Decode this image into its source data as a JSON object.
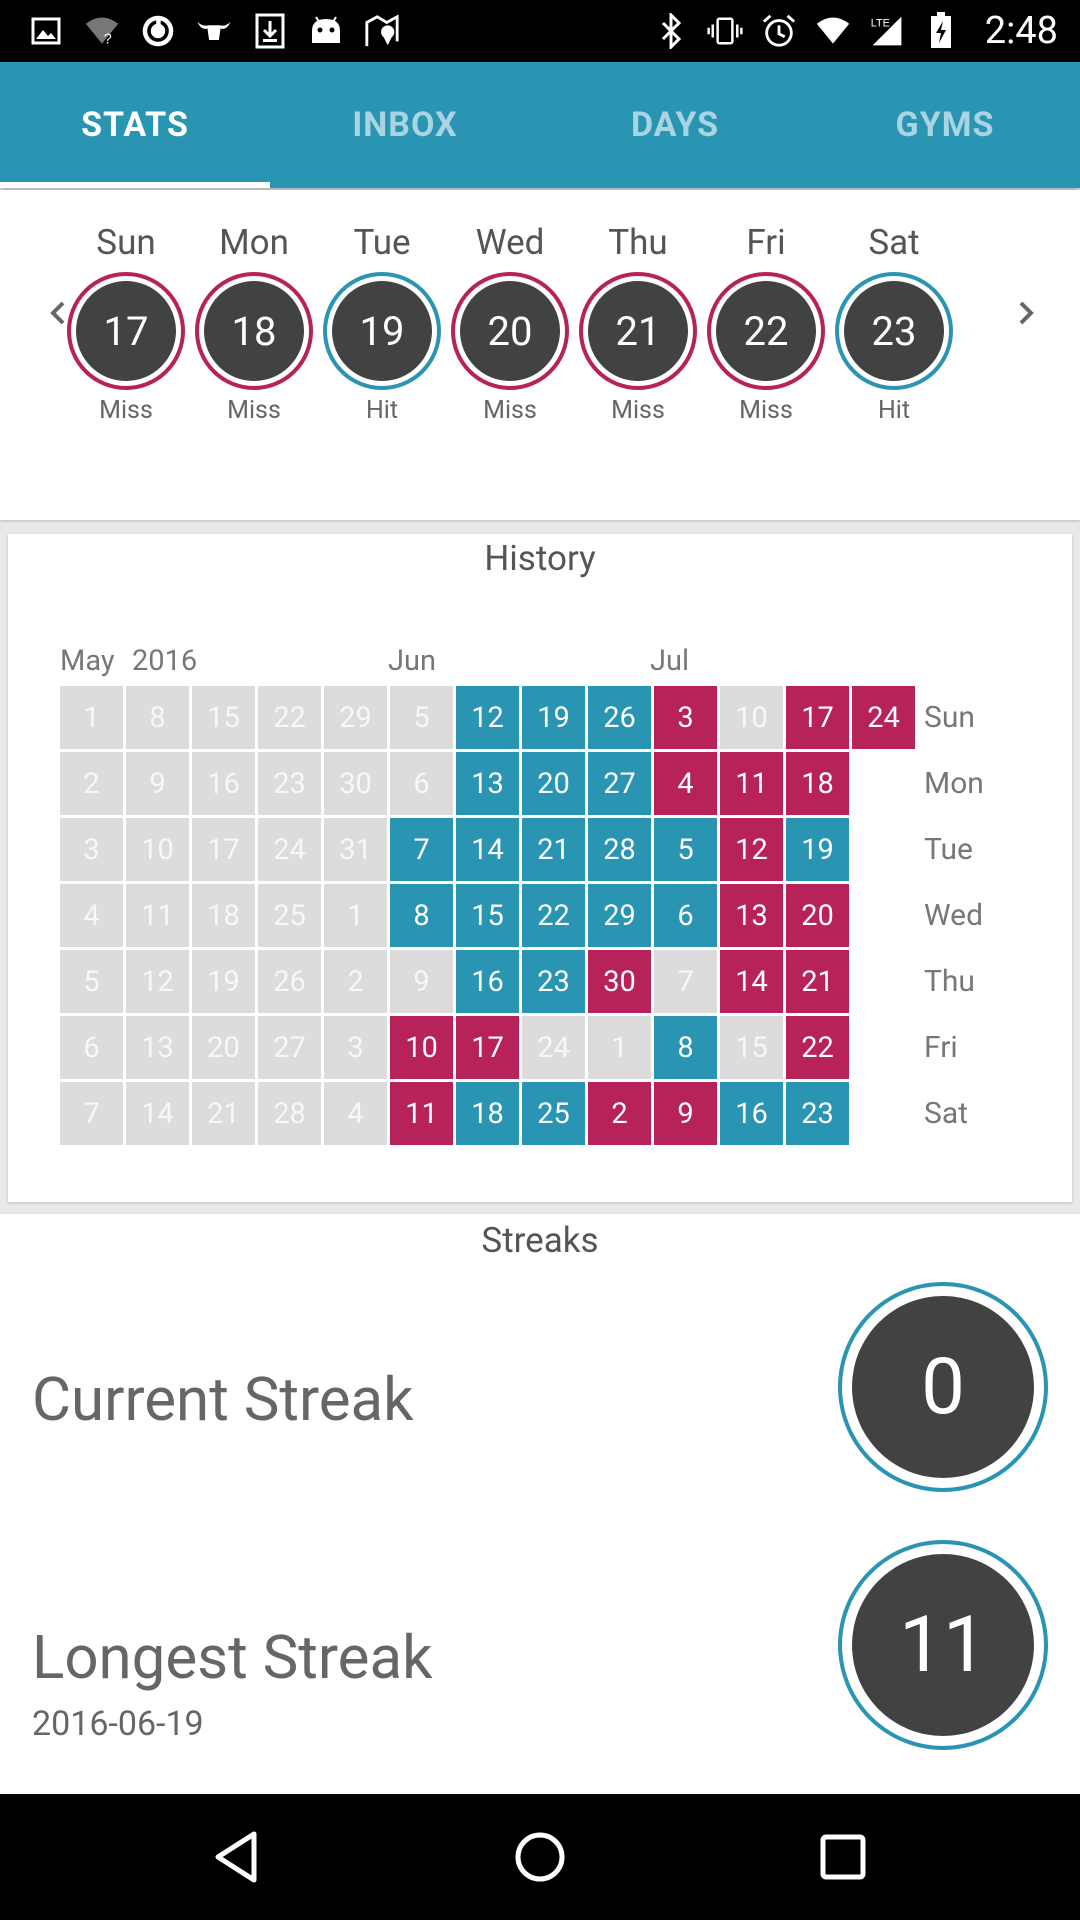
{
  "status_bar": {
    "time": "2:48",
    "icons_left": [
      "image-icon",
      "wifi-question-icon",
      "sync-icon",
      "bull-icon",
      "download-icon",
      "android-icon",
      "map-icon"
    ],
    "icons_right": [
      "bluetooth-icon",
      "vibrate-icon",
      "alarm-icon",
      "wifi-icon",
      "lte-signal-icon",
      "battery-icon"
    ]
  },
  "tabs": [
    {
      "label": "STATS",
      "active": true
    },
    {
      "label": "INBOX",
      "active": false
    },
    {
      "label": "DAYS",
      "active": false
    },
    {
      "label": "GYMS",
      "active": false
    }
  ],
  "week": {
    "days": [
      {
        "name": "Sun",
        "date": "17",
        "status": "Miss"
      },
      {
        "name": "Mon",
        "date": "18",
        "status": "Miss"
      },
      {
        "name": "Tue",
        "date": "19",
        "status": "Hit"
      },
      {
        "name": "Wed",
        "date": "20",
        "status": "Miss"
      },
      {
        "name": "Thu",
        "date": "21",
        "status": "Miss"
      },
      {
        "name": "Fri",
        "date": "22",
        "status": "Miss"
      },
      {
        "name": "Sat",
        "date": "23",
        "status": "Hit"
      }
    ]
  },
  "history": {
    "title": "History",
    "months": [
      "May",
      "2016",
      "Jun",
      "Jul"
    ],
    "weekday_labels": [
      "Sun",
      "Mon",
      "Tue",
      "Wed",
      "Thu",
      "Fri",
      "Sat"
    ],
    "columns": [
      {
        "cells": [
          [
            "1",
            "none"
          ],
          [
            "2",
            "none"
          ],
          [
            "3",
            "none"
          ],
          [
            "4",
            "none"
          ],
          [
            "5",
            "none"
          ],
          [
            "6",
            "none"
          ],
          [
            "7",
            "none"
          ]
        ]
      },
      {
        "cells": [
          [
            "8",
            "none"
          ],
          [
            "9",
            "none"
          ],
          [
            "10",
            "none"
          ],
          [
            "11",
            "none"
          ],
          [
            "12",
            "none"
          ],
          [
            "13",
            "none"
          ],
          [
            "14",
            "none"
          ]
        ]
      },
      {
        "cells": [
          [
            "15",
            "none"
          ],
          [
            "16",
            "none"
          ],
          [
            "17",
            "none"
          ],
          [
            "18",
            "none"
          ],
          [
            "19",
            "none"
          ],
          [
            "20",
            "none"
          ],
          [
            "21",
            "none"
          ]
        ]
      },
      {
        "cells": [
          [
            "22",
            "none"
          ],
          [
            "23",
            "none"
          ],
          [
            "24",
            "none"
          ],
          [
            "25",
            "none"
          ],
          [
            "26",
            "none"
          ],
          [
            "27",
            "none"
          ],
          [
            "28",
            "none"
          ]
        ]
      },
      {
        "cells": [
          [
            "29",
            "none"
          ],
          [
            "30",
            "none"
          ],
          [
            "31",
            "none"
          ],
          [
            "1",
            "none"
          ],
          [
            "2",
            "none"
          ],
          [
            "3",
            "none"
          ],
          [
            "4",
            "none"
          ]
        ]
      },
      {
        "cells": [
          [
            "5",
            "none"
          ],
          [
            "6",
            "none"
          ],
          [
            "7",
            "hit"
          ],
          [
            "8",
            "hit"
          ],
          [
            "9",
            "none"
          ],
          [
            "10",
            "miss"
          ],
          [
            "11",
            "miss"
          ]
        ]
      },
      {
        "cells": [
          [
            "12",
            "hit"
          ],
          [
            "13",
            "hit"
          ],
          [
            "14",
            "hit"
          ],
          [
            "15",
            "hit"
          ],
          [
            "16",
            "hit"
          ],
          [
            "17",
            "miss"
          ],
          [
            "18",
            "hit"
          ]
        ]
      },
      {
        "cells": [
          [
            "19",
            "hit"
          ],
          [
            "20",
            "hit"
          ],
          [
            "21",
            "hit"
          ],
          [
            "22",
            "hit"
          ],
          [
            "23",
            "hit"
          ],
          [
            "24",
            "none"
          ],
          [
            "25",
            "hit"
          ]
        ]
      },
      {
        "cells": [
          [
            "26",
            "hit"
          ],
          [
            "27",
            "hit"
          ],
          [
            "28",
            "hit"
          ],
          [
            "29",
            "hit"
          ],
          [
            "30",
            "miss"
          ],
          [
            "1",
            "none"
          ],
          [
            "2",
            "miss"
          ]
        ]
      },
      {
        "cells": [
          [
            "3",
            "miss"
          ],
          [
            "4",
            "miss"
          ],
          [
            "5",
            "hit"
          ],
          [
            "6",
            "hit"
          ],
          [
            "7",
            "none"
          ],
          [
            "8",
            "hit"
          ],
          [
            "9",
            "miss"
          ]
        ]
      },
      {
        "cells": [
          [
            "10",
            "none"
          ],
          [
            "11",
            "miss"
          ],
          [
            "12",
            "miss"
          ],
          [
            "13",
            "miss"
          ],
          [
            "14",
            "miss"
          ],
          [
            "15",
            "none"
          ],
          [
            "16",
            "hit"
          ]
        ]
      },
      {
        "cells": [
          [
            "17",
            "miss"
          ],
          [
            "18",
            "miss"
          ],
          [
            "19",
            "hit"
          ],
          [
            "20",
            "miss"
          ],
          [
            "21",
            "miss"
          ],
          [
            "22",
            "miss"
          ],
          [
            "23",
            "hit"
          ]
        ]
      },
      {
        "cells": [
          [
            "24",
            "miss"
          ]
        ]
      }
    ]
  },
  "streaks": {
    "title": "Streaks",
    "current": {
      "label": "Current Streak",
      "value": "0"
    },
    "longest": {
      "label": "Longest Streak",
      "value": "11",
      "date": "2016-06-19"
    }
  },
  "colors": {
    "accent": "#2a95b3",
    "miss": "#b8225a",
    "empty": "#dcdcdc",
    "dark": "#424242"
  },
  "nav_icons": [
    "back-icon",
    "home-icon",
    "recents-icon"
  ]
}
